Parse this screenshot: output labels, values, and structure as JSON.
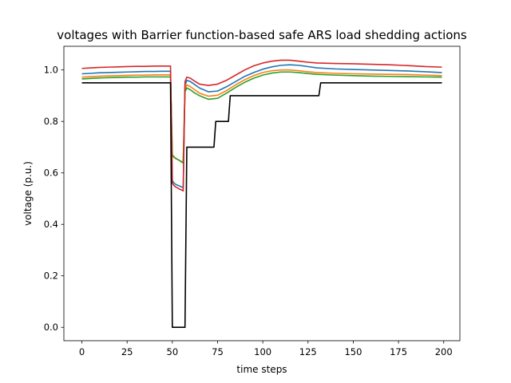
{
  "chart_data": {
    "type": "line",
    "title": "voltages with Barrier function-based safe ARS load shedding actions",
    "xlabel": "time steps",
    "ylabel": "voltage (p.u.)",
    "xlim": [
      -9.95,
      208.95
    ],
    "ylim": [
      -0.052,
      1.092
    ],
    "xticks": [
      0,
      25,
      50,
      75,
      100,
      125,
      150,
      175,
      200
    ],
    "yticks": [
      0.0,
      0.2,
      0.4,
      0.6,
      0.8,
      1.0
    ],
    "xtick_labels": [
      "0",
      "25",
      "50",
      "75",
      "100",
      "125",
      "150",
      "175",
      "200"
    ],
    "ytick_labels": [
      "0.0",
      "0.2",
      "0.4",
      "0.6",
      "0.8",
      "1.0"
    ],
    "grid": false,
    "legend": "none",
    "series": [
      {
        "color": "#1f77b4",
        "x": [
          0,
          5,
          10,
          15,
          20,
          25,
          30,
          35,
          40,
          45,
          49,
          50,
          51,
          52,
          53,
          54,
          55,
          56,
          57,
          58,
          60,
          62,
          65,
          70,
          75,
          80,
          85,
          90,
          95,
          100,
          105,
          110,
          115,
          120,
          125,
          130,
          140,
          150,
          160,
          170,
          180,
          190,
          199
        ],
        "y": [
          0.985,
          0.987,
          0.989,
          0.99,
          0.991,
          0.992,
          0.993,
          0.994,
          0.994,
          0.995,
          0.995,
          0.57,
          0.56,
          0.555,
          0.552,
          0.549,
          0.546,
          0.543,
          0.94,
          0.96,
          0.955,
          0.945,
          0.93,
          0.915,
          0.918,
          0.935,
          0.955,
          0.975,
          0.99,
          1.003,
          1.012,
          1.018,
          1.02,
          1.018,
          1.013,
          1.008,
          1.004,
          1.002,
          1.0,
          0.998,
          0.996,
          0.993,
          0.99
        ]
      },
      {
        "color": "#ff7f0e",
        "x": [
          0,
          5,
          10,
          15,
          20,
          25,
          30,
          35,
          40,
          45,
          49,
          50,
          51,
          52,
          53,
          54,
          55,
          56,
          57,
          58,
          60,
          62,
          65,
          70,
          75,
          80,
          85,
          90,
          95,
          100,
          105,
          110,
          115,
          120,
          125,
          130,
          140,
          150,
          160,
          170,
          180,
          190,
          199
        ],
        "y": [
          0.972,
          0.974,
          0.976,
          0.977,
          0.978,
          0.979,
          0.98,
          0.98,
          0.981,
          0.981,
          0.981,
          0.665,
          0.66,
          0.655,
          0.652,
          0.648,
          0.645,
          0.642,
          0.925,
          0.942,
          0.935,
          0.925,
          0.91,
          0.898,
          0.902,
          0.92,
          0.942,
          0.962,
          0.978,
          0.99,
          0.997,
          1.0,
          1.0,
          0.997,
          0.993,
          0.99,
          0.987,
          0.985,
          0.984,
          0.983,
          0.982,
          0.98,
          0.978
        ]
      },
      {
        "color": "#2ca02c",
        "x": [
          0,
          5,
          10,
          15,
          20,
          25,
          30,
          35,
          40,
          45,
          49,
          50,
          51,
          52,
          53,
          54,
          55,
          56,
          57,
          58,
          60,
          62,
          65,
          70,
          75,
          80,
          85,
          90,
          95,
          100,
          105,
          110,
          115,
          120,
          125,
          130,
          140,
          150,
          160,
          170,
          180,
          190,
          199
        ],
        "y": [
          0.965,
          0.967,
          0.969,
          0.97,
          0.971,
          0.972,
          0.972,
          0.973,
          0.973,
          0.973,
          0.973,
          0.67,
          0.662,
          0.656,
          0.652,
          0.648,
          0.643,
          0.638,
          0.915,
          0.93,
          0.923,
          0.912,
          0.9,
          0.886,
          0.89,
          0.91,
          0.932,
          0.952,
          0.968,
          0.98,
          0.988,
          0.992,
          0.992,
          0.99,
          0.986,
          0.983,
          0.98,
          0.978,
          0.976,
          0.975,
          0.974,
          0.973,
          0.972
        ]
      },
      {
        "color": "#d62728",
        "x": [
          0,
          5,
          10,
          15,
          20,
          25,
          30,
          35,
          40,
          45,
          49,
          50,
          51,
          52,
          53,
          54,
          55,
          56,
          57,
          58,
          60,
          62,
          65,
          70,
          75,
          80,
          85,
          90,
          95,
          100,
          105,
          110,
          115,
          120,
          125,
          130,
          140,
          150,
          160,
          170,
          180,
          190,
          199
        ],
        "y": [
          1.006,
          1.008,
          1.01,
          1.011,
          1.012,
          1.013,
          1.014,
          1.014,
          1.015,
          1.015,
          1.015,
          0.56,
          0.55,
          0.545,
          0.541,
          0.537,
          0.534,
          0.53,
          0.955,
          0.972,
          0.968,
          0.958,
          0.945,
          0.94,
          0.945,
          0.96,
          0.98,
          1.0,
          1.016,
          1.027,
          1.034,
          1.038,
          1.038,
          1.034,
          1.03,
          1.027,
          1.025,
          1.024,
          1.022,
          1.02,
          1.017,
          1.013,
          1.011
        ]
      },
      {
        "color": "#000000",
        "x": [
          0,
          49,
          50,
          57,
          58,
          73,
          74,
          81,
          82,
          131,
          132,
          199
        ],
        "y": [
          0.95,
          0.95,
          0.0,
          0.0,
          0.7,
          0.7,
          0.8,
          0.8,
          0.9,
          0.9,
          0.95,
          0.95
        ]
      }
    ]
  }
}
